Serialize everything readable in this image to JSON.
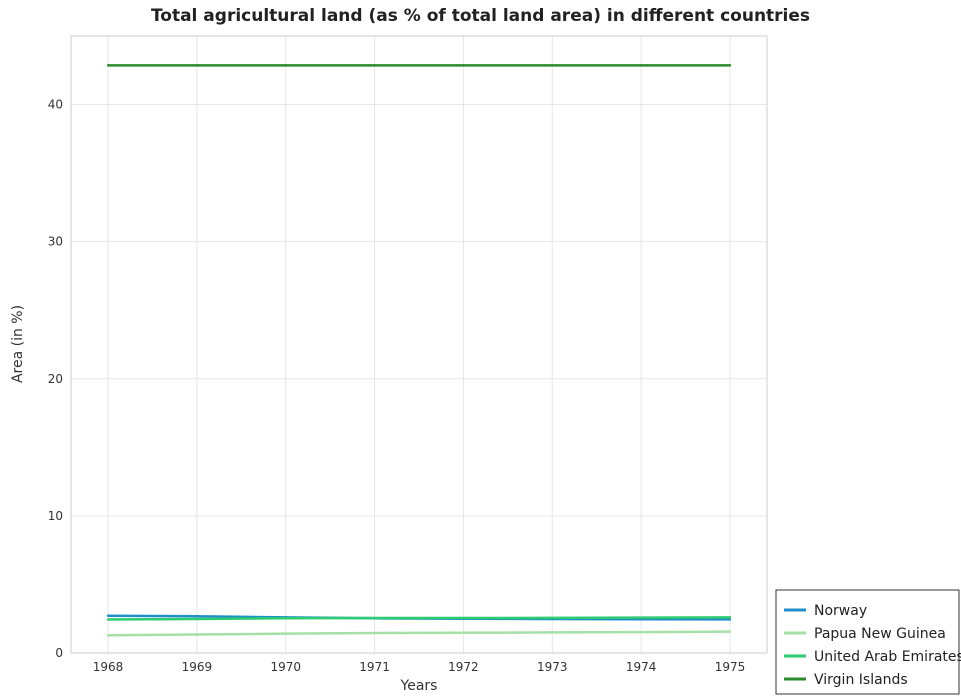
{
  "chart_data": {
    "type": "line",
    "title": "Total agricultural land (as % of total land area) in different countries",
    "xlabel": "Years",
    "ylabel": "Area (in %)",
    "x": [
      "1968",
      "1969",
      "1970",
      "1971",
      "1972",
      "1973",
      "1974",
      "1975"
    ],
    "ylim": [
      0,
      45
    ],
    "yticks": [
      0,
      10,
      20,
      30,
      40
    ],
    "grid": true,
    "legend_position": "bottom-right",
    "series": [
      {
        "name": "Norway",
        "color": "#1f8ec9",
        "values": [
          2.72,
          2.68,
          2.6,
          2.53,
          2.5,
          2.48,
          2.46,
          2.45
        ]
      },
      {
        "name": "Papua New Guinea",
        "color": "#a6e0a6",
        "values": [
          1.29,
          1.35,
          1.41,
          1.46,
          1.48,
          1.5,
          1.52,
          1.56
        ]
      },
      {
        "name": "United Arab Emirates",
        "color": "#2ecc71",
        "values": [
          2.44,
          2.48,
          2.53,
          2.55,
          2.55,
          2.56,
          2.58,
          2.6
        ]
      },
      {
        "name": "Virgin Islands",
        "color": "#2e8b2e",
        "values": [
          42.86,
          42.86,
          42.86,
          42.86,
          42.86,
          42.86,
          42.86,
          42.86
        ]
      }
    ]
  }
}
